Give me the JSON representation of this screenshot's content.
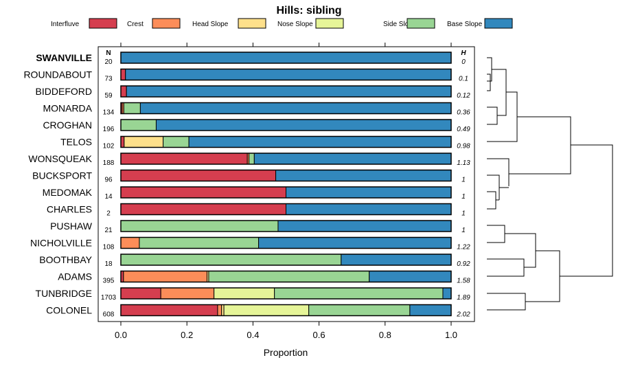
{
  "chart_data": {
    "type": "bar",
    "orientation": "horizontal-stacked",
    "title": "Hills: sibling",
    "xlabel": "Proportion",
    "xlim": [
      0,
      1
    ],
    "xticks": [
      "0.0",
      "0.2",
      "0.4",
      "0.6",
      "0.8",
      "1.0"
    ],
    "n_header": "N",
    "h_header": "H",
    "legend": [
      {
        "name": "Interfluve",
        "color": "#d53e4f"
      },
      {
        "name": "Crest",
        "color": "#fc8d59"
      },
      {
        "name": "Head Slope",
        "color": "#fee08b"
      },
      {
        "name": "Nose Slope",
        "color": "#e6f598"
      },
      {
        "name": "Side Slope",
        "color": "#99d594"
      },
      {
        "name": "Base Slope",
        "color": "#3288bd"
      }
    ],
    "rows": [
      {
        "name": "SWANVILLE",
        "bold": true,
        "n": "20",
        "h": "0",
        "values": [
          0,
          0,
          0,
          0,
          0,
          1
        ]
      },
      {
        "name": "ROUNDABOUT",
        "bold": false,
        "n": "73",
        "h": "0.1",
        "values": [
          0.014,
          0,
          0,
          0,
          0,
          0.986
        ]
      },
      {
        "name": "BIDDEFORD",
        "bold": false,
        "n": "59",
        "h": "0.12",
        "values": [
          0.017,
          0,
          0,
          0,
          0,
          0.983
        ]
      },
      {
        "name": "MONARDA",
        "bold": false,
        "n": "134",
        "h": "0.36",
        "values": [
          0.004,
          0.005,
          0,
          0,
          0.05,
          0.941
        ]
      },
      {
        "name": "CROGHAN",
        "bold": false,
        "n": "196",
        "h": "0.49",
        "values": [
          0,
          0,
          0,
          0,
          0.107,
          0.893
        ]
      },
      {
        "name": "TELOS",
        "bold": false,
        "n": "102",
        "h": "0.98",
        "values": [
          0.01,
          0,
          0.118,
          0,
          0.078,
          0.794
        ]
      },
      {
        "name": "WONSQUEAK",
        "bold": false,
        "n": "188",
        "h": "1.13",
        "values": [
          0.383,
          0.005,
          0,
          0,
          0.016,
          0.596
        ]
      },
      {
        "name": "BUCKSPORT",
        "bold": false,
        "n": "96",
        "h": "1",
        "values": [
          0.469,
          0,
          0,
          0,
          0,
          0.531
        ]
      },
      {
        "name": "MEDOMAK",
        "bold": false,
        "n": "14",
        "h": "1",
        "values": [
          0.5,
          0,
          0,
          0,
          0,
          0.5
        ]
      },
      {
        "name": "CHARLES",
        "bold": false,
        "n": "2",
        "h": "1",
        "values": [
          0.5,
          0,
          0,
          0,
          0,
          0.5
        ]
      },
      {
        "name": "PUSHAW",
        "bold": false,
        "n": "21",
        "h": "1",
        "values": [
          0,
          0,
          0,
          0,
          0.476,
          0.524
        ]
      },
      {
        "name": "NICHOLVILLE",
        "bold": false,
        "n": "108",
        "h": "1.22",
        "values": [
          0,
          0.056,
          0,
          0,
          0.361,
          0.583
        ]
      },
      {
        "name": "BOOTHBAY",
        "bold": false,
        "n": "18",
        "h": "0.92",
        "values": [
          0,
          0,
          0,
          0,
          0.667,
          0.333
        ]
      },
      {
        "name": "ADAMS",
        "bold": false,
        "n": "395",
        "h": "1.58",
        "values": [
          0.008,
          0.253,
          0.005,
          0,
          0.486,
          0.248
        ]
      },
      {
        "name": "TUNBRIDGE",
        "bold": false,
        "n": "1703",
        "h": "1.89",
        "values": [
          0.121,
          0.161,
          0,
          0.183,
          0.51,
          0.025
        ]
      },
      {
        "name": "COLONEL",
        "bold": false,
        "n": "608",
        "h": "2.02",
        "values": [
          0.293,
          0.012,
          0.007,
          0.257,
          0.306,
          0.125
        ]
      }
    ],
    "dendrogram_note": "cluster tree of rows"
  }
}
